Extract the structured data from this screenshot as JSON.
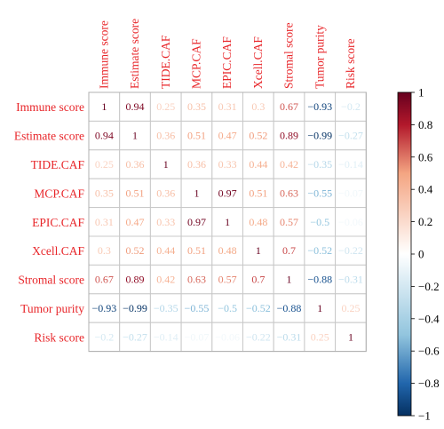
{
  "chart_data": {
    "type": "heatmap",
    "title": "",
    "row_labels": [
      "Immune score",
      "Estimate score",
      "TIDE.CAF",
      "MCP.CAF",
      "EPIC.CAF",
      "Xcell.CAF",
      "Stromal score",
      "Tumor purity",
      "Risk score"
    ],
    "col_labels": [
      "Immune score",
      "Estimate score",
      "TIDE.CAF",
      "MCP.CAF",
      "EPIC.CAF",
      "Xcell.CAF",
      "Stromal score",
      "Tumor purity",
      "Risk score"
    ],
    "values": [
      [
        1,
        0.94,
        0.25,
        0.35,
        0.31,
        0.3,
        0.67,
        -0.93,
        -0.2
      ],
      [
        0.94,
        1,
        0.36,
        0.51,
        0.47,
        0.52,
        0.89,
        -0.99,
        -0.27
      ],
      [
        0.25,
        0.36,
        1,
        0.36,
        0.33,
        0.44,
        0.42,
        -0.35,
        -0.14
      ],
      [
        0.35,
        0.51,
        0.36,
        1,
        0.97,
        0.51,
        0.63,
        -0.55,
        -0.07
      ],
      [
        0.31,
        0.47,
        0.33,
        0.97,
        1,
        0.48,
        0.57,
        -0.5,
        -0.06
      ],
      [
        0.3,
        0.52,
        0.44,
        0.51,
        0.48,
        1,
        0.7,
        -0.52,
        -0.22
      ],
      [
        0.67,
        0.89,
        0.42,
        0.63,
        0.57,
        0.7,
        1,
        -0.88,
        -0.31
      ],
      [
        -0.93,
        -0.99,
        -0.35,
        -0.55,
        -0.5,
        -0.52,
        -0.88,
        1,
        0.25
      ],
      [
        -0.2,
        -0.27,
        -0.14,
        -0.07,
        -0.06,
        -0.22,
        -0.31,
        0.25,
        1
      ]
    ],
    "value_labels": [
      [
        "1",
        "0.94",
        "0.25",
        "0.35",
        "0.31",
        "0.3",
        "0.67",
        "−0.93",
        "−0.2"
      ],
      [
        "0.94",
        "1",
        "0.36",
        "0.51",
        "0.47",
        "0.52",
        "0.89",
        "−0.99",
        "−0.27"
      ],
      [
        "0.25",
        "0.36",
        "1",
        "0.36",
        "0.33",
        "0.44",
        "0.42",
        "−0.35",
        "−0.14"
      ],
      [
        "0.35",
        "0.51",
        "0.36",
        "1",
        "0.97",
        "0.51",
        "0.63",
        "−0.55",
        "−0.07"
      ],
      [
        "0.31",
        "0.47",
        "0.33",
        "0.97",
        "1",
        "0.48",
        "0.57",
        "−0.5",
        "−0.06"
      ],
      [
        "0.3",
        "0.52",
        "0.44",
        "0.51",
        "0.48",
        "1",
        "0.7",
        "−0.52",
        "−0.22"
      ],
      [
        "0.67",
        "0.89",
        "0.42",
        "0.63",
        "0.57",
        "0.7",
        "1",
        "−0.88",
        "−0.31"
      ],
      [
        "−0.93",
        "−0.99",
        "−0.35",
        "−0.55",
        "−0.5",
        "−0.52",
        "−0.88",
        "1",
        "0.25"
      ],
      [
        "−0.2",
        "−0.27",
        "−0.14",
        "−0.07",
        "−0.06",
        "−0.22",
        "−0.31",
        "0.25",
        "1"
      ]
    ],
    "colorbar": {
      "range": [
        -1,
        1
      ],
      "ticks": [
        1,
        0.8,
        0.6,
        0.4,
        0.2,
        0,
        -0.2,
        -0.4,
        -0.6,
        -0.8,
        -1
      ],
      "tick_labels": [
        "1",
        "0.8",
        "0.6",
        "0.4",
        "0.2",
        "0",
        "−0.2",
        "−0.4",
        "−0.6",
        "−0.8",
        "−1"
      ],
      "color_stops": {
        "-1": "#053061",
        "-0.5": "#4393c3",
        "0": "#ffffff",
        "0.5": "#f4a582",
        "1": "#67001f"
      }
    },
    "label_color": "#e8262a",
    "grid": true
  }
}
